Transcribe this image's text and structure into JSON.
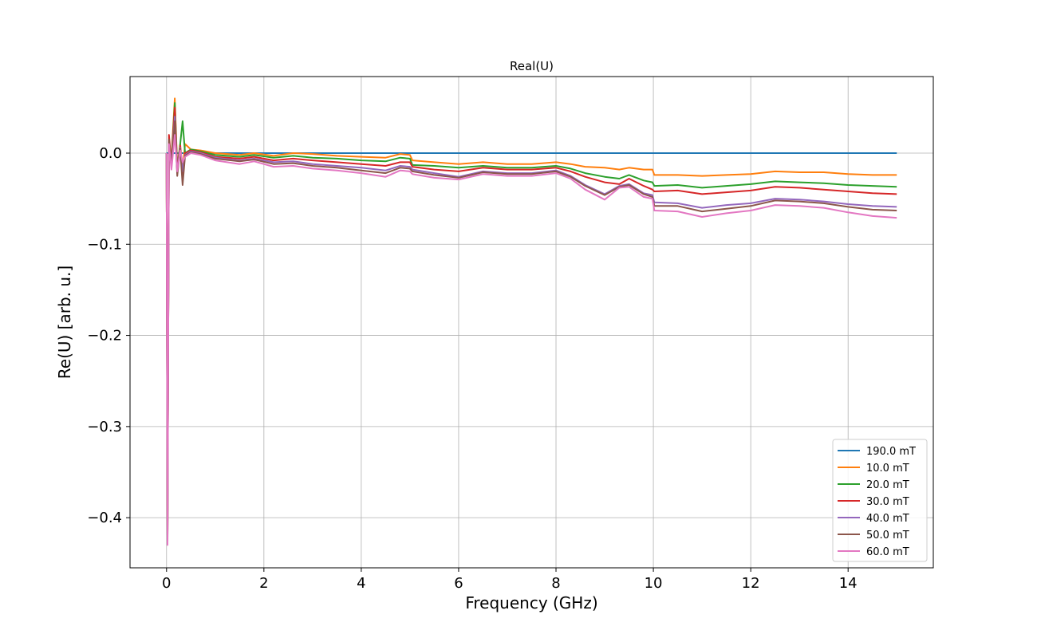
{
  "chart_data": {
    "type": "line",
    "title": "Real(U)",
    "xlabel": "Frequency (GHz)",
    "ylabel": "Re(U) [arb. u.]",
    "xlim": [
      -0.75,
      15.75
    ],
    "ylim": [
      -0.455,
      0.084
    ],
    "x_ticks": [
      0,
      2,
      4,
      6,
      8,
      10,
      12,
      14
    ],
    "x_tick_labels": [
      "0",
      "2",
      "4",
      "6",
      "8",
      "10",
      "12",
      "14"
    ],
    "y_ticks": [
      0.0,
      -0.1,
      -0.2,
      -0.3,
      -0.4
    ],
    "y_tick_labels": [
      "0.0",
      "−0.1",
      "−0.2",
      "−0.3",
      "−0.4"
    ],
    "grid": true,
    "legend_position": "lower-right",
    "series": [
      {
        "name": "190.0 mT",
        "color": "#1f77b4",
        "points": [
          [
            0.0,
            0.0
          ],
          [
            15.0,
            0.0
          ]
        ]
      },
      {
        "name": "10.0 mT",
        "color": "#ff7f0e",
        "points": [
          [
            0.0,
            0.0
          ],
          [
            0.02,
            -0.42
          ],
          [
            0.05,
            0.01
          ],
          [
            0.1,
            -0.005
          ],
          [
            0.17,
            0.06
          ],
          [
            0.22,
            -0.015
          ],
          [
            0.28,
            0.01
          ],
          [
            0.33,
            -0.02
          ],
          [
            0.38,
            0.01
          ],
          [
            0.5,
            0.004
          ],
          [
            0.7,
            0.003
          ],
          [
            1.0,
            0.0
          ],
          [
            1.5,
            -0.002
          ],
          [
            1.8,
            0.0
          ],
          [
            2.2,
            -0.003
          ],
          [
            2.6,
            0.0
          ],
          [
            3.0,
            -0.001
          ],
          [
            3.5,
            -0.003
          ],
          [
            4.0,
            -0.004
          ],
          [
            4.5,
            -0.005
          ],
          [
            4.8,
            -0.001
          ],
          [
            5.0,
            -0.002
          ],
          [
            5.05,
            -0.008
          ],
          [
            5.5,
            -0.01
          ],
          [
            6.0,
            -0.012
          ],
          [
            6.5,
            -0.01
          ],
          [
            7.0,
            -0.012
          ],
          [
            7.5,
            -0.012
          ],
          [
            8.0,
            -0.01
          ],
          [
            8.3,
            -0.012
          ],
          [
            8.6,
            -0.015
          ],
          [
            9.0,
            -0.016
          ],
          [
            9.3,
            -0.018
          ],
          [
            9.5,
            -0.016
          ],
          [
            9.8,
            -0.018
          ],
          [
            9.98,
            -0.018
          ],
          [
            10.02,
            -0.024
          ],
          [
            10.5,
            -0.024
          ],
          [
            11.0,
            -0.025
          ],
          [
            11.5,
            -0.024
          ],
          [
            12.0,
            -0.023
          ],
          [
            12.5,
            -0.02
          ],
          [
            13.0,
            -0.021
          ],
          [
            13.5,
            -0.021
          ],
          [
            14.0,
            -0.023
          ],
          [
            14.5,
            -0.024
          ],
          [
            15.0,
            -0.024
          ]
        ]
      },
      {
        "name": "20.0 mT",
        "color": "#2ca02c",
        "points": [
          [
            0.0,
            0.0
          ],
          [
            0.02,
            -0.42
          ],
          [
            0.05,
            0.01
          ],
          [
            0.1,
            -0.01
          ],
          [
            0.17,
            0.055
          ],
          [
            0.22,
            -0.018
          ],
          [
            0.28,
            0.01
          ],
          [
            0.33,
            0.035
          ],
          [
            0.38,
            0.0
          ],
          [
            0.5,
            0.004
          ],
          [
            0.7,
            0.002
          ],
          [
            1.0,
            -0.002
          ],
          [
            1.5,
            -0.004
          ],
          [
            1.8,
            -0.002
          ],
          [
            2.2,
            -0.005
          ],
          [
            2.6,
            -0.003
          ],
          [
            3.0,
            -0.005
          ],
          [
            3.5,
            -0.006
          ],
          [
            4.0,
            -0.008
          ],
          [
            4.5,
            -0.009
          ],
          [
            4.8,
            -0.005
          ],
          [
            5.0,
            -0.006
          ],
          [
            5.05,
            -0.013
          ],
          [
            5.5,
            -0.014
          ],
          [
            6.0,
            -0.016
          ],
          [
            6.5,
            -0.014
          ],
          [
            7.0,
            -0.016
          ],
          [
            7.5,
            -0.016
          ],
          [
            8.0,
            -0.014
          ],
          [
            8.3,
            -0.017
          ],
          [
            8.6,
            -0.022
          ],
          [
            9.0,
            -0.026
          ],
          [
            9.3,
            -0.028
          ],
          [
            9.5,
            -0.024
          ],
          [
            9.8,
            -0.03
          ],
          [
            9.98,
            -0.032
          ],
          [
            10.02,
            -0.036
          ],
          [
            10.5,
            -0.035
          ],
          [
            11.0,
            -0.038
          ],
          [
            11.5,
            -0.036
          ],
          [
            12.0,
            -0.034
          ],
          [
            12.5,
            -0.031
          ],
          [
            13.0,
            -0.032
          ],
          [
            13.5,
            -0.033
          ],
          [
            14.0,
            -0.035
          ],
          [
            14.5,
            -0.036
          ],
          [
            15.0,
            -0.037
          ]
        ]
      },
      {
        "name": "30.0 mT",
        "color": "#d62728",
        "points": [
          [
            0.0,
            0.0
          ],
          [
            0.02,
            -0.42
          ],
          [
            0.05,
            0.02
          ],
          [
            0.1,
            -0.012
          ],
          [
            0.17,
            0.05
          ],
          [
            0.22,
            -0.02
          ],
          [
            0.28,
            0.008
          ],
          [
            0.33,
            -0.03
          ],
          [
            0.38,
            0.0
          ],
          [
            0.5,
            0.003
          ],
          [
            0.7,
            0.001
          ],
          [
            1.0,
            -0.004
          ],
          [
            1.5,
            -0.006
          ],
          [
            1.8,
            -0.004
          ],
          [
            2.2,
            -0.008
          ],
          [
            2.6,
            -0.006
          ],
          [
            3.0,
            -0.008
          ],
          [
            3.5,
            -0.01
          ],
          [
            4.0,
            -0.012
          ],
          [
            4.5,
            -0.014
          ],
          [
            4.8,
            -0.01
          ],
          [
            5.0,
            -0.01
          ],
          [
            5.05,
            -0.015
          ],
          [
            5.5,
            -0.018
          ],
          [
            6.0,
            -0.02
          ],
          [
            6.5,
            -0.016
          ],
          [
            7.0,
            -0.018
          ],
          [
            7.5,
            -0.018
          ],
          [
            8.0,
            -0.016
          ],
          [
            8.3,
            -0.02
          ],
          [
            8.6,
            -0.026
          ],
          [
            9.0,
            -0.032
          ],
          [
            9.3,
            -0.034
          ],
          [
            9.5,
            -0.028
          ],
          [
            9.8,
            -0.036
          ],
          [
            9.98,
            -0.04
          ],
          [
            10.02,
            -0.042
          ],
          [
            10.5,
            -0.041
          ],
          [
            11.0,
            -0.045
          ],
          [
            11.5,
            -0.043
          ],
          [
            12.0,
            -0.041
          ],
          [
            12.5,
            -0.037
          ],
          [
            13.0,
            -0.038
          ],
          [
            13.5,
            -0.04
          ],
          [
            14.0,
            -0.042
          ],
          [
            14.5,
            -0.044
          ],
          [
            15.0,
            -0.045
          ]
        ]
      },
      {
        "name": "40.0 mT",
        "color": "#9467bd",
        "points": [
          [
            0.0,
            0.0
          ],
          [
            0.02,
            -0.425
          ],
          [
            0.05,
            0.012
          ],
          [
            0.1,
            -0.012
          ],
          [
            0.17,
            0.04
          ],
          [
            0.22,
            -0.022
          ],
          [
            0.28,
            0.006
          ],
          [
            0.33,
            -0.02
          ],
          [
            0.38,
            -0.002
          ],
          [
            0.5,
            0.002
          ],
          [
            0.7,
            0.0
          ],
          [
            1.0,
            -0.005
          ],
          [
            1.5,
            -0.008
          ],
          [
            1.8,
            -0.006
          ],
          [
            2.2,
            -0.01
          ],
          [
            2.6,
            -0.009
          ],
          [
            3.0,
            -0.012
          ],
          [
            3.5,
            -0.014
          ],
          [
            4.0,
            -0.016
          ],
          [
            4.5,
            -0.019
          ],
          [
            4.8,
            -0.014
          ],
          [
            5.0,
            -0.015
          ],
          [
            5.05,
            -0.018
          ],
          [
            5.5,
            -0.022
          ],
          [
            6.0,
            -0.026
          ],
          [
            6.5,
            -0.02
          ],
          [
            7.0,
            -0.022
          ],
          [
            7.5,
            -0.022
          ],
          [
            8.0,
            -0.019
          ],
          [
            8.3,
            -0.025
          ],
          [
            8.6,
            -0.035
          ],
          [
            9.0,
            -0.045
          ],
          [
            9.3,
            -0.036
          ],
          [
            9.5,
            -0.034
          ],
          [
            9.8,
            -0.044
          ],
          [
            9.98,
            -0.046
          ],
          [
            10.02,
            -0.054
          ],
          [
            10.5,
            -0.055
          ],
          [
            11.0,
            -0.06
          ],
          [
            11.5,
            -0.057
          ],
          [
            12.0,
            -0.055
          ],
          [
            12.5,
            -0.05
          ],
          [
            13.0,
            -0.051
          ],
          [
            13.5,
            -0.053
          ],
          [
            14.0,
            -0.056
          ],
          [
            14.5,
            -0.058
          ],
          [
            15.0,
            -0.059
          ]
        ]
      },
      {
        "name": "50.0 mT",
        "color": "#8c564b",
        "points": [
          [
            0.0,
            0.0
          ],
          [
            0.02,
            -0.428
          ],
          [
            0.05,
            0.015
          ],
          [
            0.1,
            -0.015
          ],
          [
            0.17,
            0.035
          ],
          [
            0.22,
            -0.025
          ],
          [
            0.28,
            0.005
          ],
          [
            0.33,
            -0.035
          ],
          [
            0.38,
            -0.003
          ],
          [
            0.5,
            0.001
          ],
          [
            0.7,
            -0.001
          ],
          [
            1.0,
            -0.006
          ],
          [
            1.5,
            -0.009
          ],
          [
            1.8,
            -0.007
          ],
          [
            2.2,
            -0.012
          ],
          [
            2.6,
            -0.011
          ],
          [
            3.0,
            -0.014
          ],
          [
            3.5,
            -0.016
          ],
          [
            4.0,
            -0.019
          ],
          [
            4.5,
            -0.022
          ],
          [
            4.8,
            -0.016
          ],
          [
            5.0,
            -0.017
          ],
          [
            5.05,
            -0.02
          ],
          [
            5.5,
            -0.024
          ],
          [
            6.0,
            -0.027
          ],
          [
            6.5,
            -0.021
          ],
          [
            7.0,
            -0.023
          ],
          [
            7.5,
            -0.023
          ],
          [
            8.0,
            -0.02
          ],
          [
            8.3,
            -0.026
          ],
          [
            8.6,
            -0.036
          ],
          [
            9.0,
            -0.046
          ],
          [
            9.3,
            -0.037
          ],
          [
            9.5,
            -0.035
          ],
          [
            9.8,
            -0.045
          ],
          [
            9.98,
            -0.048
          ],
          [
            10.02,
            -0.058
          ],
          [
            10.5,
            -0.058
          ],
          [
            11.0,
            -0.064
          ],
          [
            11.5,
            -0.061
          ],
          [
            12.0,
            -0.058
          ],
          [
            12.5,
            -0.052
          ],
          [
            13.0,
            -0.053
          ],
          [
            13.5,
            -0.055
          ],
          [
            14.0,
            -0.059
          ],
          [
            14.5,
            -0.062
          ],
          [
            15.0,
            -0.063
          ]
        ]
      },
      {
        "name": "60.0 mT",
        "color": "#e377c2",
        "points": [
          [
            0.0,
            0.0
          ],
          [
            0.02,
            -0.43
          ],
          [
            0.05,
            0.01
          ],
          [
            0.1,
            -0.018
          ],
          [
            0.17,
            0.02
          ],
          [
            0.22,
            -0.02
          ],
          [
            0.28,
            0.003
          ],
          [
            0.33,
            -0.01
          ],
          [
            0.38,
            -0.004
          ],
          [
            0.5,
            0.0
          ],
          [
            0.7,
            -0.002
          ],
          [
            1.0,
            -0.008
          ],
          [
            1.5,
            -0.012
          ],
          [
            1.8,
            -0.009
          ],
          [
            2.2,
            -0.015
          ],
          [
            2.6,
            -0.014
          ],
          [
            3.0,
            -0.017
          ],
          [
            3.5,
            -0.019
          ],
          [
            4.0,
            -0.022
          ],
          [
            4.5,
            -0.026
          ],
          [
            4.8,
            -0.019
          ],
          [
            5.0,
            -0.02
          ],
          [
            5.05,
            -0.023
          ],
          [
            5.5,
            -0.027
          ],
          [
            6.0,
            -0.029
          ],
          [
            6.5,
            -0.023
          ],
          [
            7.0,
            -0.025
          ],
          [
            7.5,
            -0.025
          ],
          [
            8.0,
            -0.022
          ],
          [
            8.3,
            -0.028
          ],
          [
            8.6,
            -0.04
          ],
          [
            9.0,
            -0.051
          ],
          [
            9.3,
            -0.038
          ],
          [
            9.5,
            -0.037
          ],
          [
            9.8,
            -0.048
          ],
          [
            9.98,
            -0.05
          ],
          [
            10.02,
            -0.063
          ],
          [
            10.5,
            -0.064
          ],
          [
            11.0,
            -0.07
          ],
          [
            11.5,
            -0.066
          ],
          [
            12.0,
            -0.063
          ],
          [
            12.5,
            -0.057
          ],
          [
            13.0,
            -0.058
          ],
          [
            13.5,
            -0.06
          ],
          [
            14.0,
            -0.065
          ],
          [
            14.5,
            -0.069
          ],
          [
            15.0,
            -0.071
          ]
        ]
      }
    ]
  }
}
